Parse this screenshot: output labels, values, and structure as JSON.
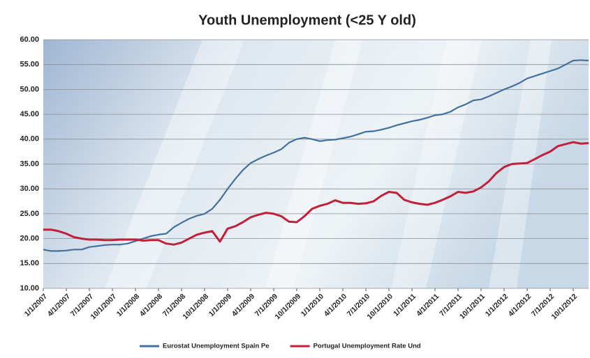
{
  "chart_data": {
    "type": "line",
    "title": "Youth Unemployment (<25 Y old)",
    "categories": [
      "1/1/2007",
      null,
      null,
      "4/1/2007",
      null,
      null,
      "7/1/2007",
      null,
      null,
      "10/1/2007",
      null,
      null,
      "1/1/2008",
      null,
      null,
      "4/1/2008",
      null,
      null,
      "7/1/2008",
      null,
      null,
      "10/1/2008",
      null,
      null,
      "1/1/2009",
      null,
      null,
      "4/1/2009",
      null,
      null,
      "7/1/2009",
      null,
      null,
      "10/1/2009",
      null,
      null,
      "1/1/2010",
      null,
      null,
      "4/1/2010",
      null,
      null,
      "7/1/2010",
      null,
      null,
      "10/1/2010",
      null,
      null,
      "1/1/2011",
      null,
      null,
      "4/1/2011",
      null,
      null,
      "7/1/2011",
      null,
      null,
      "10/1/2011",
      null,
      null,
      "1/1/2012",
      null,
      null,
      "4/1/2012",
      null,
      null,
      "7/1/2012",
      null,
      null,
      "10/1/2012",
      null,
      null
    ],
    "series": [
      {
        "name": "Eurostat Unemployment Spain Pe",
        "color": "#41719c",
        "values": [
          17.8,
          17.5,
          17.5,
          17.6,
          17.8,
          17.8,
          18.3,
          18.5,
          18.7,
          18.8,
          18.8,
          19.0,
          19.5,
          20.0,
          20.5,
          20.8,
          21.0,
          22.3,
          23.2,
          24.0,
          24.6,
          25.0,
          26.0,
          27.8,
          30.0,
          32.0,
          33.8,
          35.2,
          36.0,
          36.7,
          37.3,
          38.0,
          39.3,
          40.0,
          40.3,
          40.0,
          39.6,
          39.8,
          39.9,
          40.2,
          40.5,
          41.0,
          41.5,
          41.6,
          41.9,
          42.3,
          42.8,
          43.2,
          43.6,
          43.9,
          44.3,
          44.8,
          45.0,
          45.5,
          46.4,
          47.0,
          47.8,
          48.0,
          48.6,
          49.3,
          50.0,
          50.6,
          51.3,
          52.2,
          52.7,
          53.2,
          53.7,
          54.2,
          55.0,
          55.8,
          55.9,
          55.8
        ]
      },
      {
        "name": "Portugal Unemployment Rate Und",
        "color": "#c0203a",
        "values": [
          21.8,
          21.8,
          21.5,
          21.0,
          20.3,
          20.0,
          19.8,
          19.8,
          19.7,
          19.7,
          19.8,
          19.8,
          19.8,
          19.6,
          19.7,
          19.7,
          19.0,
          18.8,
          19.2,
          20.0,
          20.8,
          21.2,
          21.5,
          19.4,
          22.0,
          22.5,
          23.3,
          24.3,
          24.8,
          25.2,
          25.0,
          24.5,
          23.4,
          23.3,
          24.5,
          26.0,
          26.6,
          27.0,
          27.7,
          27.2,
          27.2,
          27.0,
          27.1,
          27.5,
          28.6,
          29.4,
          29.2,
          27.8,
          27.3,
          27.0,
          26.8,
          27.2,
          27.8,
          28.5,
          29.4,
          29.2,
          29.5,
          30.3,
          31.5,
          33.2,
          34.4,
          35.0,
          35.1,
          35.2,
          36.0,
          36.8,
          37.5,
          38.6,
          39.0,
          39.4,
          39.1,
          39.2
        ]
      }
    ],
    "ylim": [
      10,
      60
    ],
    "yticks": [
      {
        "value": 10,
        "label": "10.00"
      },
      {
        "value": 15,
        "label": "15.00"
      },
      {
        "value": 20,
        "label": "20.00"
      },
      {
        "value": 25,
        "label": "25.00"
      },
      {
        "value": 30,
        "label": "30.00"
      },
      {
        "value": 35,
        "label": "35.00"
      },
      {
        "value": 40,
        "label": "40.00"
      },
      {
        "value": 45,
        "label": "45.00"
      },
      {
        "value": 50,
        "label": "50.00"
      },
      {
        "value": 55,
        "label": "55.00"
      },
      {
        "value": 60,
        "label": "60.00"
      }
    ],
    "grid": true,
    "legend": "bottom"
  }
}
